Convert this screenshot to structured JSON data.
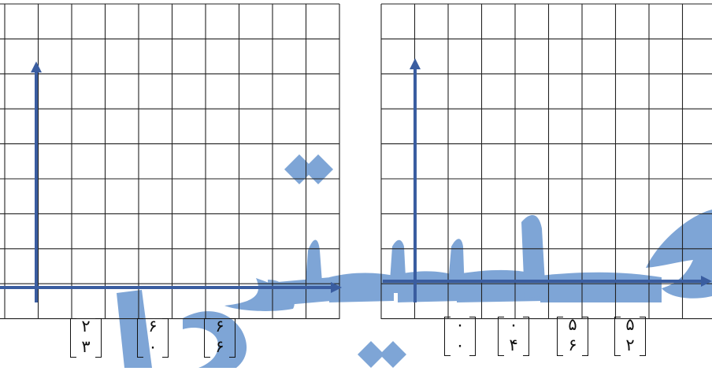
{
  "colors": {
    "grid_line": "#222222",
    "axis": "#3a5da0",
    "watermark": "#7ea5d6",
    "background": "#ffffff"
  },
  "left_panel": {
    "vectors": [
      {
        "top": "۲",
        "bottom": "۳"
      },
      {
        "top": "۶",
        "bottom": "۰"
      },
      {
        "top": "۶",
        "bottom": "۶"
      }
    ]
  },
  "right_panel": {
    "vectors": [
      {
        "top": "۰",
        "bottom": "۰"
      },
      {
        "top": "۰",
        "bottom": "۴"
      },
      {
        "top": "۵",
        "bottom": "۶"
      },
      {
        "top": "۵",
        "bottom": "۲"
      }
    ]
  }
}
